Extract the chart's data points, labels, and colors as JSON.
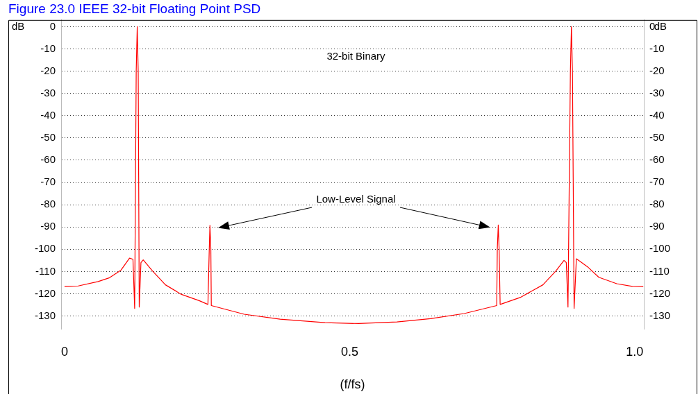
{
  "chart_data": {
    "type": "line",
    "title": "Figure 23.0 IEEE 32-bit Floating Point PSD",
    "xlabel": "(f/fs)",
    "ylabel": "dB",
    "y2label": "dB",
    "annotations": [
      "32-bit Binary",
      "Low-Level Signal"
    ],
    "x": [
      0,
      0.024,
      0.059,
      0.079,
      0.099,
      0.114,
      0.12,
      0.123,
      0.1257,
      0.1275,
      0.1292,
      0.131,
      0.134,
      0.138,
      0.154,
      0.177,
      0.205,
      0.236,
      0.2515,
      0.2538,
      0.255,
      0.2566,
      0.2574,
      0.315,
      0.378,
      0.457,
      0.516,
      0.583,
      0.642,
      0.701,
      0.758,
      0.759,
      0.7607,
      0.7622,
      0.764,
      0.799,
      0.839,
      0.862,
      0.876,
      0.88,
      0.883,
      0.8872,
      0.889,
      0.8908,
      0.8937,
      0.8977,
      0.9174,
      0.937,
      0.9685,
      0.996,
      1.015
    ],
    "series": [
      {
        "color": "#ff0000",
        "values": [
          -116.7,
          -116.5,
          -114.5,
          -112.8,
          -109.4,
          -104,
          -104.5,
          -126.6,
          -20,
          0,
          -20,
          -126,
          -106,
          -104.8,
          -109.7,
          -116,
          -120.3,
          -123.1,
          -124.8,
          -100,
          -89.3,
          -100,
          -125.3,
          -129.2,
          -131.4,
          -133,
          -133.4,
          -132.7,
          -131.2,
          -128.9,
          -125.3,
          -100,
          -89.1,
          -100,
          -124.8,
          -121.7,
          -116,
          -109.7,
          -105,
          -106,
          -126,
          -20,
          0,
          -20,
          -126.6,
          -104.3,
          -107.9,
          -112.6,
          -115.5,
          -116.7,
          -116.8
        ]
      }
    ],
    "xlim": [
      -0.006,
      1.016
    ],
    "xticks": [
      0,
      0.5,
      {
        "value": 1,
        "label": "1.0"
      }
    ],
    "ylim": [
      -136,
      3
    ],
    "yticks": [
      0,
      -10,
      -20,
      -30,
      -40,
      -50,
      -60,
      -70,
      -80,
      -90,
      -100,
      -110,
      -120,
      -130
    ],
    "y2lim": [
      -136,
      3
    ],
    "y2ticks": [
      0,
      -10,
      -20,
      -30,
      -40,
      -50,
      -60,
      -70,
      -80,
      -90,
      -100,
      -110,
      -120,
      -130
    ],
    "grid": "y",
    "legend": false,
    "marker": "none",
    "line_style": "solid"
  }
}
